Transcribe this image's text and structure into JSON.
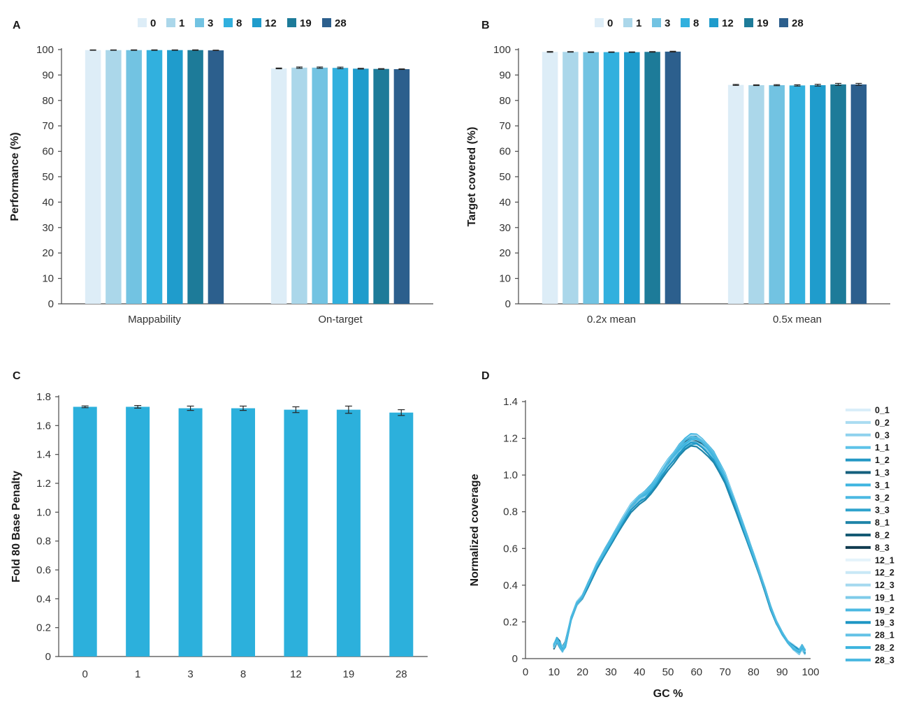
{
  "figure": {
    "background": "#ffffff",
    "text_color": "#333333",
    "axis_color": "#4a4a4a"
  },
  "chart_data": [
    {
      "panel": "A",
      "type": "bar",
      "ylabel": "Performance (%)",
      "ylim": [
        0,
        100
      ],
      "yticks": [
        "0",
        "10",
        "20",
        "30",
        "40",
        "50",
        "60",
        "70",
        "80",
        "90",
        "100"
      ],
      "categories": [
        "Mappability",
        "On-target"
      ],
      "legend": [
        "0",
        "1",
        "3",
        "8",
        "12",
        "19",
        "28"
      ],
      "legend_position": "top",
      "grid": false,
      "series": [
        {
          "name": "0",
          "color": "#ddedf7",
          "values": [
            99.8,
            92.6
          ],
          "errors": [
            0.08,
            0.15
          ]
        },
        {
          "name": "1",
          "color": "#abd7ea",
          "values": [
            99.8,
            92.9
          ],
          "errors": [
            0.08,
            0.25
          ]
        },
        {
          "name": "3",
          "color": "#72c3e2",
          "values": [
            99.8,
            92.9
          ],
          "errors": [
            0.1,
            0.25
          ]
        },
        {
          "name": "8",
          "color": "#31b0de",
          "values": [
            99.8,
            92.8
          ],
          "errors": [
            0.1,
            0.3
          ]
        },
        {
          "name": "12",
          "color": "#1f9ccc",
          "values": [
            99.8,
            92.5
          ],
          "errors": [
            0.08,
            0.15
          ]
        },
        {
          "name": "19",
          "color": "#1d7b99",
          "values": [
            99.8,
            92.4
          ],
          "errors": [
            0.1,
            0.12
          ]
        },
        {
          "name": "28",
          "color": "#2c5f8d",
          "values": [
            99.7,
            92.3
          ],
          "errors": [
            0.08,
            0.12
          ]
        }
      ]
    },
    {
      "panel": "B",
      "type": "bar",
      "ylabel": "Target covered (%)",
      "ylim": [
        0,
        100
      ],
      "yticks": [
        "0",
        "10",
        "20",
        "30",
        "40",
        "50",
        "60",
        "70",
        "80",
        "90",
        "100"
      ],
      "categories": [
        "0.2x mean",
        "0.5x mean"
      ],
      "legend": [
        "0",
        "1",
        "3",
        "8",
        "12",
        "19",
        "28"
      ],
      "legend_position": "top",
      "grid": false,
      "series": [
        {
          "name": "0",
          "color": "#ddedf7",
          "values": [
            99.1,
            86.1
          ],
          "errors": [
            0.15,
            0.2
          ]
        },
        {
          "name": "1",
          "color": "#abd7ea",
          "values": [
            99.1,
            86.0
          ],
          "errors": [
            0.1,
            0.15
          ]
        },
        {
          "name": "3",
          "color": "#72c3e2",
          "values": [
            99.0,
            86.0
          ],
          "errors": [
            0.12,
            0.2
          ]
        },
        {
          "name": "8",
          "color": "#31b0de",
          "values": [
            99.0,
            85.9
          ],
          "errors": [
            0.1,
            0.25
          ]
        },
        {
          "name": "12",
          "color": "#1f9ccc",
          "values": [
            99.0,
            86.0
          ],
          "errors": [
            0.1,
            0.35
          ]
        },
        {
          "name": "19",
          "color": "#1d7b99",
          "values": [
            99.1,
            86.3
          ],
          "errors": [
            0.12,
            0.4
          ]
        },
        {
          "name": "28",
          "color": "#2c5f8d",
          "values": [
            99.2,
            86.3
          ],
          "errors": [
            0.15,
            0.4
          ]
        }
      ]
    },
    {
      "panel": "C",
      "type": "bar",
      "ylabel": "Fold 80 Base Penalty",
      "ylim": [
        0,
        1.8
      ],
      "yticks": [
        "0",
        "0.2",
        "0.4",
        "0.6",
        "0.8",
        "1.0",
        "1.2",
        "1.4",
        "1.6",
        "1.8"
      ],
      "categories": [
        "0",
        "1",
        "3",
        "8",
        "12",
        "19",
        "28"
      ],
      "bar_color": "#2cb0dc",
      "grid": false,
      "values": [
        1.73,
        1.73,
        1.72,
        1.72,
        1.71,
        1.71,
        1.69
      ],
      "errors": [
        0.006,
        0.009,
        0.015,
        0.015,
        0.02,
        0.025,
        0.02
      ]
    },
    {
      "panel": "D",
      "type": "line",
      "xlabel": "GC %",
      "ylabel": "Normalized coverage",
      "xlim": [
        0,
        100
      ],
      "ylim": [
        0,
        1.4
      ],
      "xticks": [
        "0",
        "10",
        "20",
        "30",
        "40",
        "50",
        "60",
        "70",
        "80",
        "90",
        "100"
      ],
      "yticks": [
        "0",
        "0.2",
        "0.4",
        "0.6",
        "0.8",
        "1.0",
        "1.2",
        "1.4"
      ],
      "legend_position": "right",
      "x": [
        10,
        11,
        12,
        13,
        14,
        16,
        18,
        20,
        22,
        25,
        28,
        31,
        34,
        37,
        40,
        42,
        44,
        46,
        48,
        50,
        52,
        54,
        56,
        58,
        60,
        62,
        64,
        66,
        68,
        70,
        72,
        74,
        76,
        78,
        80,
        82,
        84,
        86,
        88,
        90,
        92,
        94,
        96,
        97,
        98
      ],
      "base_values": [
        0.07,
        0.1,
        0.08,
        0.05,
        0.08,
        0.22,
        0.3,
        0.34,
        0.41,
        0.51,
        0.59,
        0.67,
        0.75,
        0.83,
        0.88,
        0.9,
        0.93,
        0.97,
        1.02,
        1.07,
        1.11,
        1.15,
        1.18,
        1.2,
        1.2,
        1.18,
        1.15,
        1.11,
        1.05,
        0.99,
        0.91,
        0.83,
        0.74,
        0.65,
        0.56,
        0.47,
        0.38,
        0.28,
        0.2,
        0.14,
        0.09,
        0.06,
        0.04,
        0.06,
        0.04
      ],
      "series": [
        {
          "name": "0_1",
          "color": "#d9eef9",
          "scale": 1.0
        },
        {
          "name": "0_2",
          "color": "#aadcf1",
          "scale": 0.988
        },
        {
          "name": "0_3",
          "color": "#8fd2ee",
          "scale": 1.006
        },
        {
          "name": "1_1",
          "color": "#5ec3e8",
          "scale": 0.994
        },
        {
          "name": "1_2",
          "color": "#2397c4",
          "scale": 1.012
        },
        {
          "name": "1_3",
          "color": "#15607e",
          "scale": 0.998
        },
        {
          "name": "3_1",
          "color": "#3fb5e0",
          "scale": 1.016
        },
        {
          "name": "3_2",
          "color": "#4cb9e2",
          "scale": 0.982
        },
        {
          "name": "3_3",
          "color": "#2fa3cd",
          "scale": 0.972
        },
        {
          "name": "8_1",
          "color": "#1f84a8",
          "scale": 0.962
        },
        {
          "name": "8_2",
          "color": "#155a74",
          "scale": 0.992
        },
        {
          "name": "8_3",
          "color": "#113c50",
          "scale": 1.002
        },
        {
          "name": "12_1",
          "color": "#e4f3fb",
          "scale": 1.004
        },
        {
          "name": "12_2",
          "color": "#c8e8f6",
          "scale": 0.996
        },
        {
          "name": "12_3",
          "color": "#a5d9ef",
          "scale": 1.01
        },
        {
          "name": "19_1",
          "color": "#7ecbe9",
          "scale": 0.986
        },
        {
          "name": "19_2",
          "color": "#4cb9e2",
          "scale": 1.0
        },
        {
          "name": "19_3",
          "color": "#1e96c4",
          "scale": 0.976
        },
        {
          "name": "28_1",
          "color": "#63c2e6",
          "scale": 1.008
        },
        {
          "name": "28_2",
          "color": "#3db4de",
          "scale": 0.994
        },
        {
          "name": "28_3",
          "color": "#4db9e1",
          "scale": 1.004
        }
      ]
    }
  ]
}
